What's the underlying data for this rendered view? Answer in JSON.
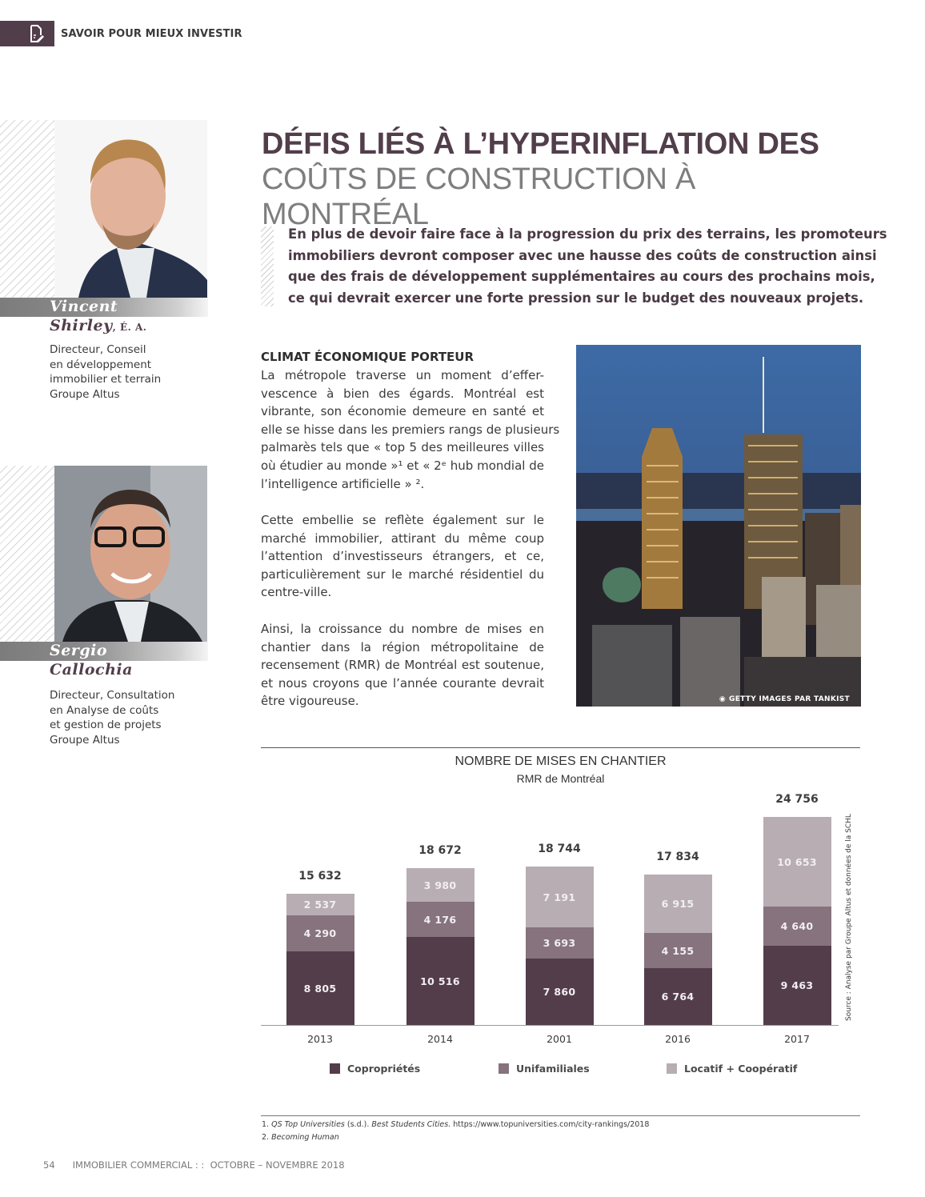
{
  "header": {
    "section_label": "SAVOIR POUR MIEUX INVESTIR",
    "icon": "document-pen-icon",
    "accent_color": "#523e4b"
  },
  "profiles": [
    {
      "first_name": "Vincent",
      "last_name": "Shirley",
      "suffix": ", É. A.",
      "role_lines": [
        "Directeur, Conseil",
        "en développement",
        "immobilier et terrain",
        "Groupe Altus"
      ]
    },
    {
      "first_name": "Sergio",
      "last_name": "Callochia",
      "suffix": "",
      "role_lines": [
        "Directeur, Consultation",
        "en Analyse de coûts",
        "et gestion de projets",
        "Groupe Altus"
      ]
    }
  ],
  "article": {
    "title_line1": "DÉFIS LIÉS À L’HYPERINFLATION DES",
    "title_line2": "COÛTS DE CONSTRUCTION À MONTRÉAL",
    "lead_lines": [
      "En plus de devoir faire face à la progression du prix des terrains, les promoteurs",
      "immobiliers devront composer avec une hausse des coûts de construction ainsi",
      "que des frais de développement supplémentaires au cours des prochains mois,",
      "ce qui devrait exercer une forte pression sur le budget des nouveaux projets."
    ],
    "subhead": "CLIMAT ÉCONOMIQUE PORTEUR",
    "paragraph1_lines": [
      "La métropole traverse un moment d’effer-",
      "vescence à bien des égards. Montréal est",
      "vibrante, son économie demeure en santé et",
      "elle se hisse dans les premiers rangs de plusieurs",
      "palmarès tels que « top 5 des meilleures villes",
      "où étudier au monde »¹ et « 2ᵉ hub mondial de",
      "l’intelligence artificielle » ²."
    ],
    "paragraph2_lines": [
      "Cette embellie se reflète également sur le",
      "marché immobilier, attirant du même coup",
      "l’attention d’investisseurs étrangers, et ce,",
      "particulièrement sur le marché résidentiel du",
      "centre-ville."
    ],
    "paragraph3_lines": [
      "Ainsi, la croissance du nombre de mises en",
      "chantier dans la région métropolitaine de",
      "recensement (RMR) de Montréal est soutenue,",
      "et nous croyons que l’année courante devrait",
      "être vigoureuse."
    ],
    "photo_credit": "GETTY IMAGES PAR TANKIST"
  },
  "chart_data": {
    "type": "bar",
    "stacked": true,
    "title": "NOMBRE DE MISES EN CHANTIER",
    "subtitle": "RMR de Montréal",
    "categories": [
      "2013",
      "2014",
      "2001",
      "2016",
      "2017"
    ],
    "series": [
      {
        "name": "Copropriétés",
        "color": "#533d4b",
        "values": [
          8805,
          10516,
          7860,
          6764,
          9463
        ],
        "labels": [
          "8 805",
          "10 516",
          "7 860",
          "6 764",
          "9 463"
        ]
      },
      {
        "name": "Unifamiliales",
        "color": "#86737d",
        "values": [
          4290,
          4176,
          3693,
          4155,
          4640
        ],
        "labels": [
          "4 290",
          "4 176",
          "3 693",
          "4 155",
          "4 640"
        ]
      },
      {
        "name": "Locatif + Coopératif",
        "color": "#b7adb3",
        "values": [
          2537,
          3980,
          7191,
          6915,
          10653
        ],
        "labels": [
          "2 537",
          "3 980",
          "7 191",
          "6 915",
          "10 653"
        ]
      }
    ],
    "totals": [
      15632,
      18672,
      18744,
      17834,
      24756
    ],
    "total_labels": [
      "15 632",
      "18 672",
      "18 744",
      "17 834",
      "24 756"
    ],
    "xlabel": "",
    "ylabel": "",
    "ylim": [
      0,
      25000
    ],
    "grid": false,
    "legend_position": "bottom",
    "source": "Source : Analyse par Groupe Altus et données de la SCHL"
  },
  "footnotes": [
    {
      "num": "1.",
      "italic1": "QS Top Universities",
      "plain1": " (s.d.). ",
      "italic2": "Best Students Cities.",
      "plain2": " https://www.topuniversities.com/city-rankings/2018"
    },
    {
      "num": "2.",
      "italic1": "Becoming Human",
      "plain1": "",
      "italic2": "",
      "plain2": ""
    }
  ],
  "footer": {
    "page_number": "54",
    "publication": "IMMOBILIER COMMERCIAL : :  OCTOBRE – NOVEMBRE 2018"
  }
}
